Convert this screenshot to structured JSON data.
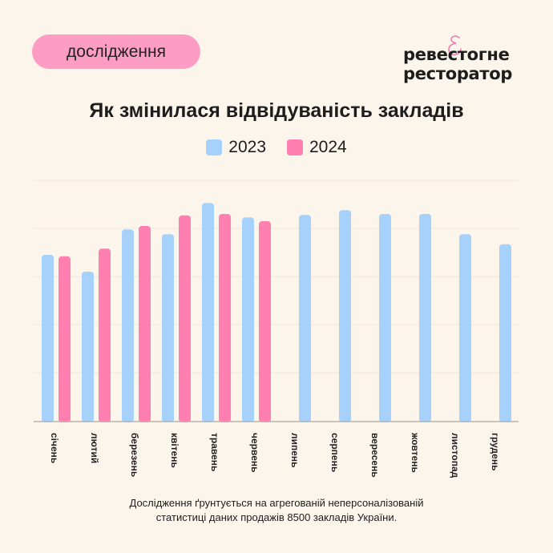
{
  "header": {
    "badge": "дослідження",
    "logo_line1": "ревестогне",
    "logo_line2": "ресторатор",
    "logo_symbol": "&"
  },
  "chart_data": {
    "type": "bar",
    "title": "Як змінилася відвідуваність закладів",
    "categories": [
      "січень",
      "лютий",
      "березень",
      "квітень",
      "травень",
      "червень",
      "липень",
      "серпень",
      "вересень",
      "жовтень",
      "листопад",
      "грудень"
    ],
    "series": [
      {
        "name": "2023",
        "color": "#a6d1fa",
        "values": [
          3.45,
          3.1,
          3.98,
          3.88,
          4.53,
          4.23,
          4.28,
          4.38,
          4.3,
          4.3,
          3.88,
          3.67
        ]
      },
      {
        "name": "2024",
        "color": "#ff7fb0",
        "values": [
          3.42,
          3.58,
          4.05,
          4.27,
          4.3,
          4.15,
          null,
          null,
          null,
          null,
          null,
          null
        ]
      }
    ],
    "ylim": [
      0,
      5
    ],
    "y_tick_labels_shown": false,
    "grid": true,
    "legend": "top-center"
  },
  "footer": {
    "line1": "Дослідження ґрунтується на агрегованій неперсоналізованій",
    "line2": "статистиці даних продажів 8500 закладів України."
  }
}
